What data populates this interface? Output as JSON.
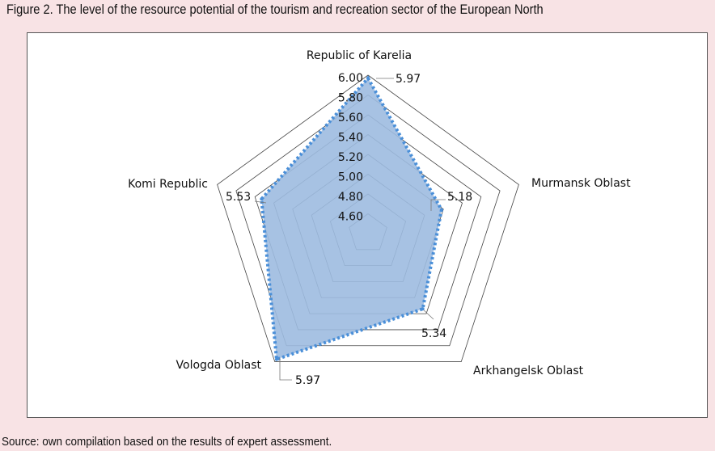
{
  "title": "Figure 2. The level of the resource potential of the tourism and recreation sector of the European North",
  "source": "Source: own compilation based on the results of expert assessment.",
  "chart_data": {
    "type": "radar",
    "categories": [
      "Republic of Karelia",
      "Murmansk Oblast",
      "Arkhangelsk Oblast",
      "Vologda Oblast",
      "Komi Republic"
    ],
    "values": [
      5.97,
      5.18,
      5.34,
      5.97,
      5.53
    ],
    "data_labels": [
      "5.97",
      "5.18",
      "5.34",
      "5.97",
      "5.53"
    ],
    "rlim": [
      4.4,
      6.0
    ],
    "tick_labels": [
      "4.60",
      "4.80",
      "5.00",
      "5.20",
      "5.40",
      "5.60",
      "5.80",
      "6.00"
    ],
    "fill_color": "#9dbbe0",
    "line_color": "#4a8fd8",
    "line_style": "dotted",
    "grid": true
  }
}
